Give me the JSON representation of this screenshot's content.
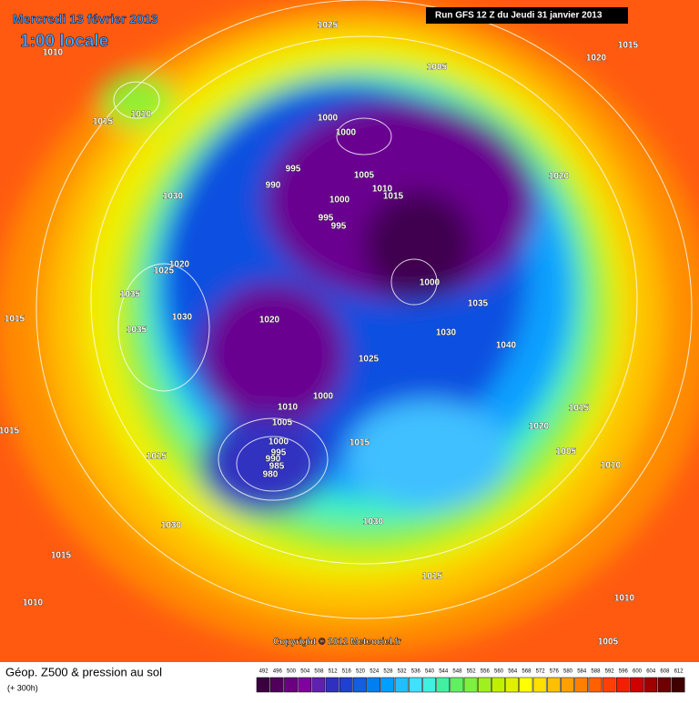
{
  "header": {
    "date": "Mercredi 13 février 2013",
    "time": "1:00 locale",
    "run": "Run GFS 12 Z du Jeudi 31 janvier 2013"
  },
  "isobar_labels": [
    "1010",
    "1025",
    "1015",
    "1020",
    "1005",
    "1010",
    "1015",
    "1000",
    "1000",
    "995",
    "990",
    "1005",
    "1010",
    "1015",
    "1000",
    "995",
    "995",
    "1030",
    "1020",
    "1020",
    "1025",
    "1035",
    "1015",
    "1035",
    "1030",
    "1020",
    "1000",
    "1035",
    "1030",
    "1040",
    "1025",
    "1000",
    "1010",
    "1005",
    "1000",
    "995",
    "990",
    "985",
    "980",
    "1015",
    "1015",
    "1020",
    "1005",
    "1010",
    "1015",
    "1015",
    "1030",
    "1030",
    "1015",
    "1015",
    "1010",
    "1010",
    "1005"
  ],
  "copyright": "Copyright © 2012 Meteociel.fr",
  "legend": {
    "title": "Géop. Z500 & pression au sol",
    "lead": "(+ 300h)",
    "scale": [
      492,
      496,
      500,
      504,
      508,
      512,
      516,
      520,
      524,
      528,
      532,
      536,
      540,
      544,
      548,
      552,
      556,
      560,
      564,
      568,
      572,
      576,
      580,
      584,
      588,
      592,
      596,
      600,
      604,
      608,
      612
    ],
    "colors": [
      "#3a0040",
      "#50005a",
      "#6a0080",
      "#8000a0",
      "#6020b0",
      "#3030c0",
      "#2040d0",
      "#1060e0",
      "#0080f0",
      "#00a0ff",
      "#20c0ff",
      "#40e0ff",
      "#40f0e0",
      "#40f0a0",
      "#60f060",
      "#80f040",
      "#a0f020",
      "#c0f000",
      "#e0f000",
      "#ffff00",
      "#ffe000",
      "#ffc000",
      "#ffa000",
      "#ff8000",
      "#ff6000",
      "#ff4000",
      "#f02000",
      "#d00000",
      "#a00000",
      "#700000",
      "#400000"
    ]
  }
}
